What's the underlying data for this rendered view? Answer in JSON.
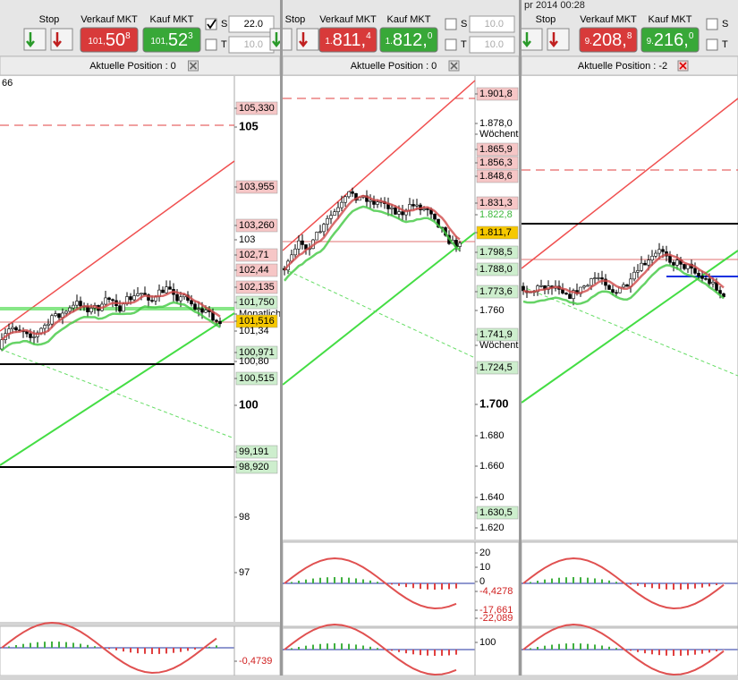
{
  "panels": [
    {
      "corner_label": "66",
      "toolbar": {
        "stop": "Stop",
        "sell_label": "Verkauf MKT",
        "sell_price": {
          "prefix": "101,",
          "main": "50",
          "sup": "8"
        },
        "buy_label": "Kauf MKT",
        "buy_price": {
          "prefix": "101,",
          "main": "52",
          "sup": "3"
        },
        "s_label": "S",
        "s_checked": true,
        "s_value": "22.0",
        "t_label": "T",
        "t_checked": false,
        "t_value": "10.0"
      },
      "position": "Aktuelle Position : 0",
      "axis_labels": [
        {
          "text": "105,330",
          "style": "pink"
        },
        {
          "text": "105",
          "style": "bold"
        },
        {
          "text": "103,955",
          "style": "pink"
        },
        {
          "text": "103,260",
          "style": "pink"
        },
        {
          "text": "103",
          "style": "plain"
        },
        {
          "text": "102,71",
          "style": "pink"
        },
        {
          "text": "102,44",
          "style": "pink"
        },
        {
          "text": "102,135",
          "style": "pink"
        },
        {
          "text": "101,750",
          "style": "lightgreen"
        },
        {
          "text": "Monatlich",
          "style": "note"
        },
        {
          "text": "101,516",
          "style": "yellow"
        },
        {
          "text": "101,34",
          "style": "plain"
        },
        {
          "text": "100,971",
          "style": "lightgreen"
        },
        {
          "text": "100,80",
          "style": "plain"
        },
        {
          "text": "100,515",
          "style": "lightgreen"
        },
        {
          "text": "100",
          "style": "bold"
        },
        {
          "text": "99,191",
          "style": "lightgreen"
        },
        {
          "text": "98,920",
          "style": "lightgreen"
        },
        {
          "text": "98",
          "style": "plain"
        },
        {
          "text": "97",
          "style": "plain"
        },
        {
          "text": "-0,4739",
          "style": "redtext"
        }
      ]
    },
    {
      "toolbar": {
        "stop": "Stop",
        "sell_label": "Verkauf MKT",
        "sell_price": {
          "prefix": "1.",
          "main": "811,",
          "sup": "4"
        },
        "buy_label": "Kauf MKT",
        "buy_price": {
          "prefix": "1.",
          "main": "812,",
          "sup": "0"
        },
        "s_label": "S",
        "s_checked": false,
        "s_value": "10.0",
        "t_label": "T",
        "t_checked": false,
        "t_value": "10.0"
      },
      "position": "Aktuelle Position : 0",
      "axis_labels": [
        {
          "text": "1.901,8",
          "style": "pink"
        },
        {
          "text": "1.878,0",
          "style": "plain"
        },
        {
          "text": "Wöchentli",
          "style": "note"
        },
        {
          "text": "1.865,9",
          "style": "pink"
        },
        {
          "text": "1.856,3",
          "style": "pink"
        },
        {
          "text": "1.848,6",
          "style": "pink"
        },
        {
          "text": "1.831,3",
          "style": "pink"
        },
        {
          "text": "1.822,8",
          "style": "greentext"
        },
        {
          "text": "1.811,7",
          "style": "yellow"
        },
        {
          "text": "1.798,5",
          "style": "lightgreen"
        },
        {
          "text": "1.788,0",
          "style": "lightgreen"
        },
        {
          "text": "1.773,6",
          "style": "lightgreen"
        },
        {
          "text": "1.760",
          "style": "plain"
        },
        {
          "text": "1.741,9",
          "style": "lightgreen"
        },
        {
          "text": "Wöchentli",
          "style": "note"
        },
        {
          "text": "1.724,5",
          "style": "lightgreen"
        },
        {
          "text": "1.700",
          "style": "bold"
        },
        {
          "text": "1.680",
          "style": "plain"
        },
        {
          "text": "1.660",
          "style": "plain"
        },
        {
          "text": "1.640",
          "style": "plain"
        },
        {
          "text": "1.630,5",
          "style": "lightgreen"
        },
        {
          "text": "1.620",
          "style": "plain"
        },
        {
          "text": "20",
          "style": "plain"
        },
        {
          "text": "10",
          "style": "plain"
        },
        {
          "text": "0",
          "style": "plain"
        },
        {
          "text": "-4,4278",
          "style": "redtext"
        },
        {
          "text": "-17,661",
          "style": "redtext"
        },
        {
          "text": "-22,089",
          "style": "redtext"
        },
        {
          "text": "100",
          "style": "plain"
        }
      ]
    },
    {
      "title": "pr 2014 00:28",
      "toolbar": {
        "stop": "Stop",
        "sell_label": "Verkauf MKT",
        "sell_price": {
          "prefix": "9.",
          "main": "208,",
          "sup": "8"
        },
        "buy_label": "Kauf MKT",
        "buy_price": {
          "prefix": "9.",
          "main": "216,",
          "sup": "0"
        },
        "s_label": "S",
        "s_checked": false,
        "t_label": "T",
        "t_checked": false
      },
      "position": "Aktuelle Position : -2",
      "axis_labels": []
    }
  ]
}
